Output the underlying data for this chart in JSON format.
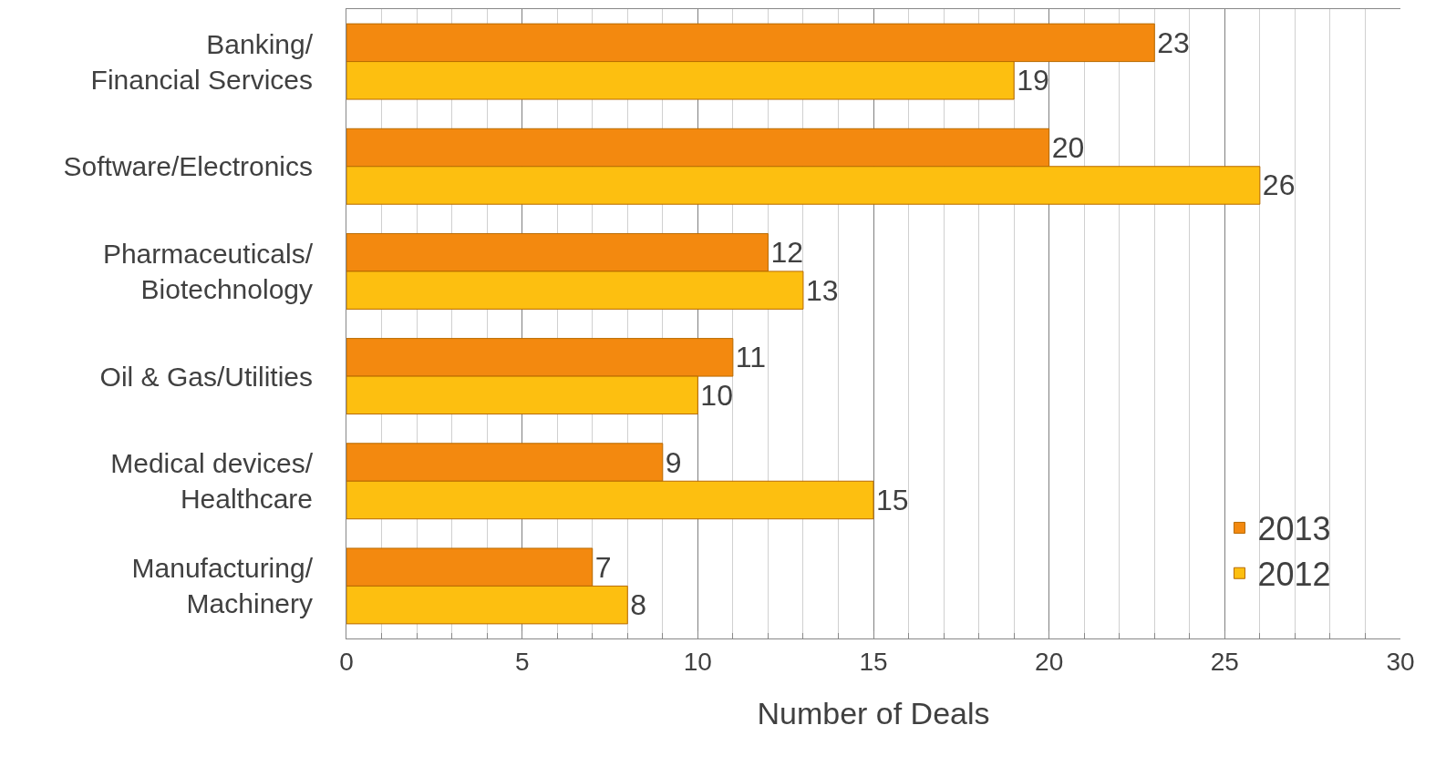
{
  "chart_data": {
    "type": "bar",
    "orientation": "horizontal",
    "xlabel": "Number of Deals",
    "categories": [
      "Banking/\nFinancial Services",
      "Software/Electronics",
      "Pharmaceuticals/\nBiotechnology",
      "Oil & Gas/Utilities",
      "Medical devices/\nHealthcare",
      "Manufacturing/\nMachinery"
    ],
    "series": [
      {
        "name": "2013",
        "color": "#f3890f",
        "values": [
          23,
          20,
          12,
          11,
          9,
          7
        ]
      },
      {
        "name": "2012",
        "color": "#fdbf10",
        "values": [
          19,
          26,
          13,
          10,
          15,
          8
        ]
      }
    ],
    "xlim": [
      0,
      30
    ],
    "xticks": [
      0,
      5,
      10,
      15,
      20,
      25,
      30
    ],
    "grid": "x",
    "legend": "bottom right",
    "data_labels": true
  }
}
